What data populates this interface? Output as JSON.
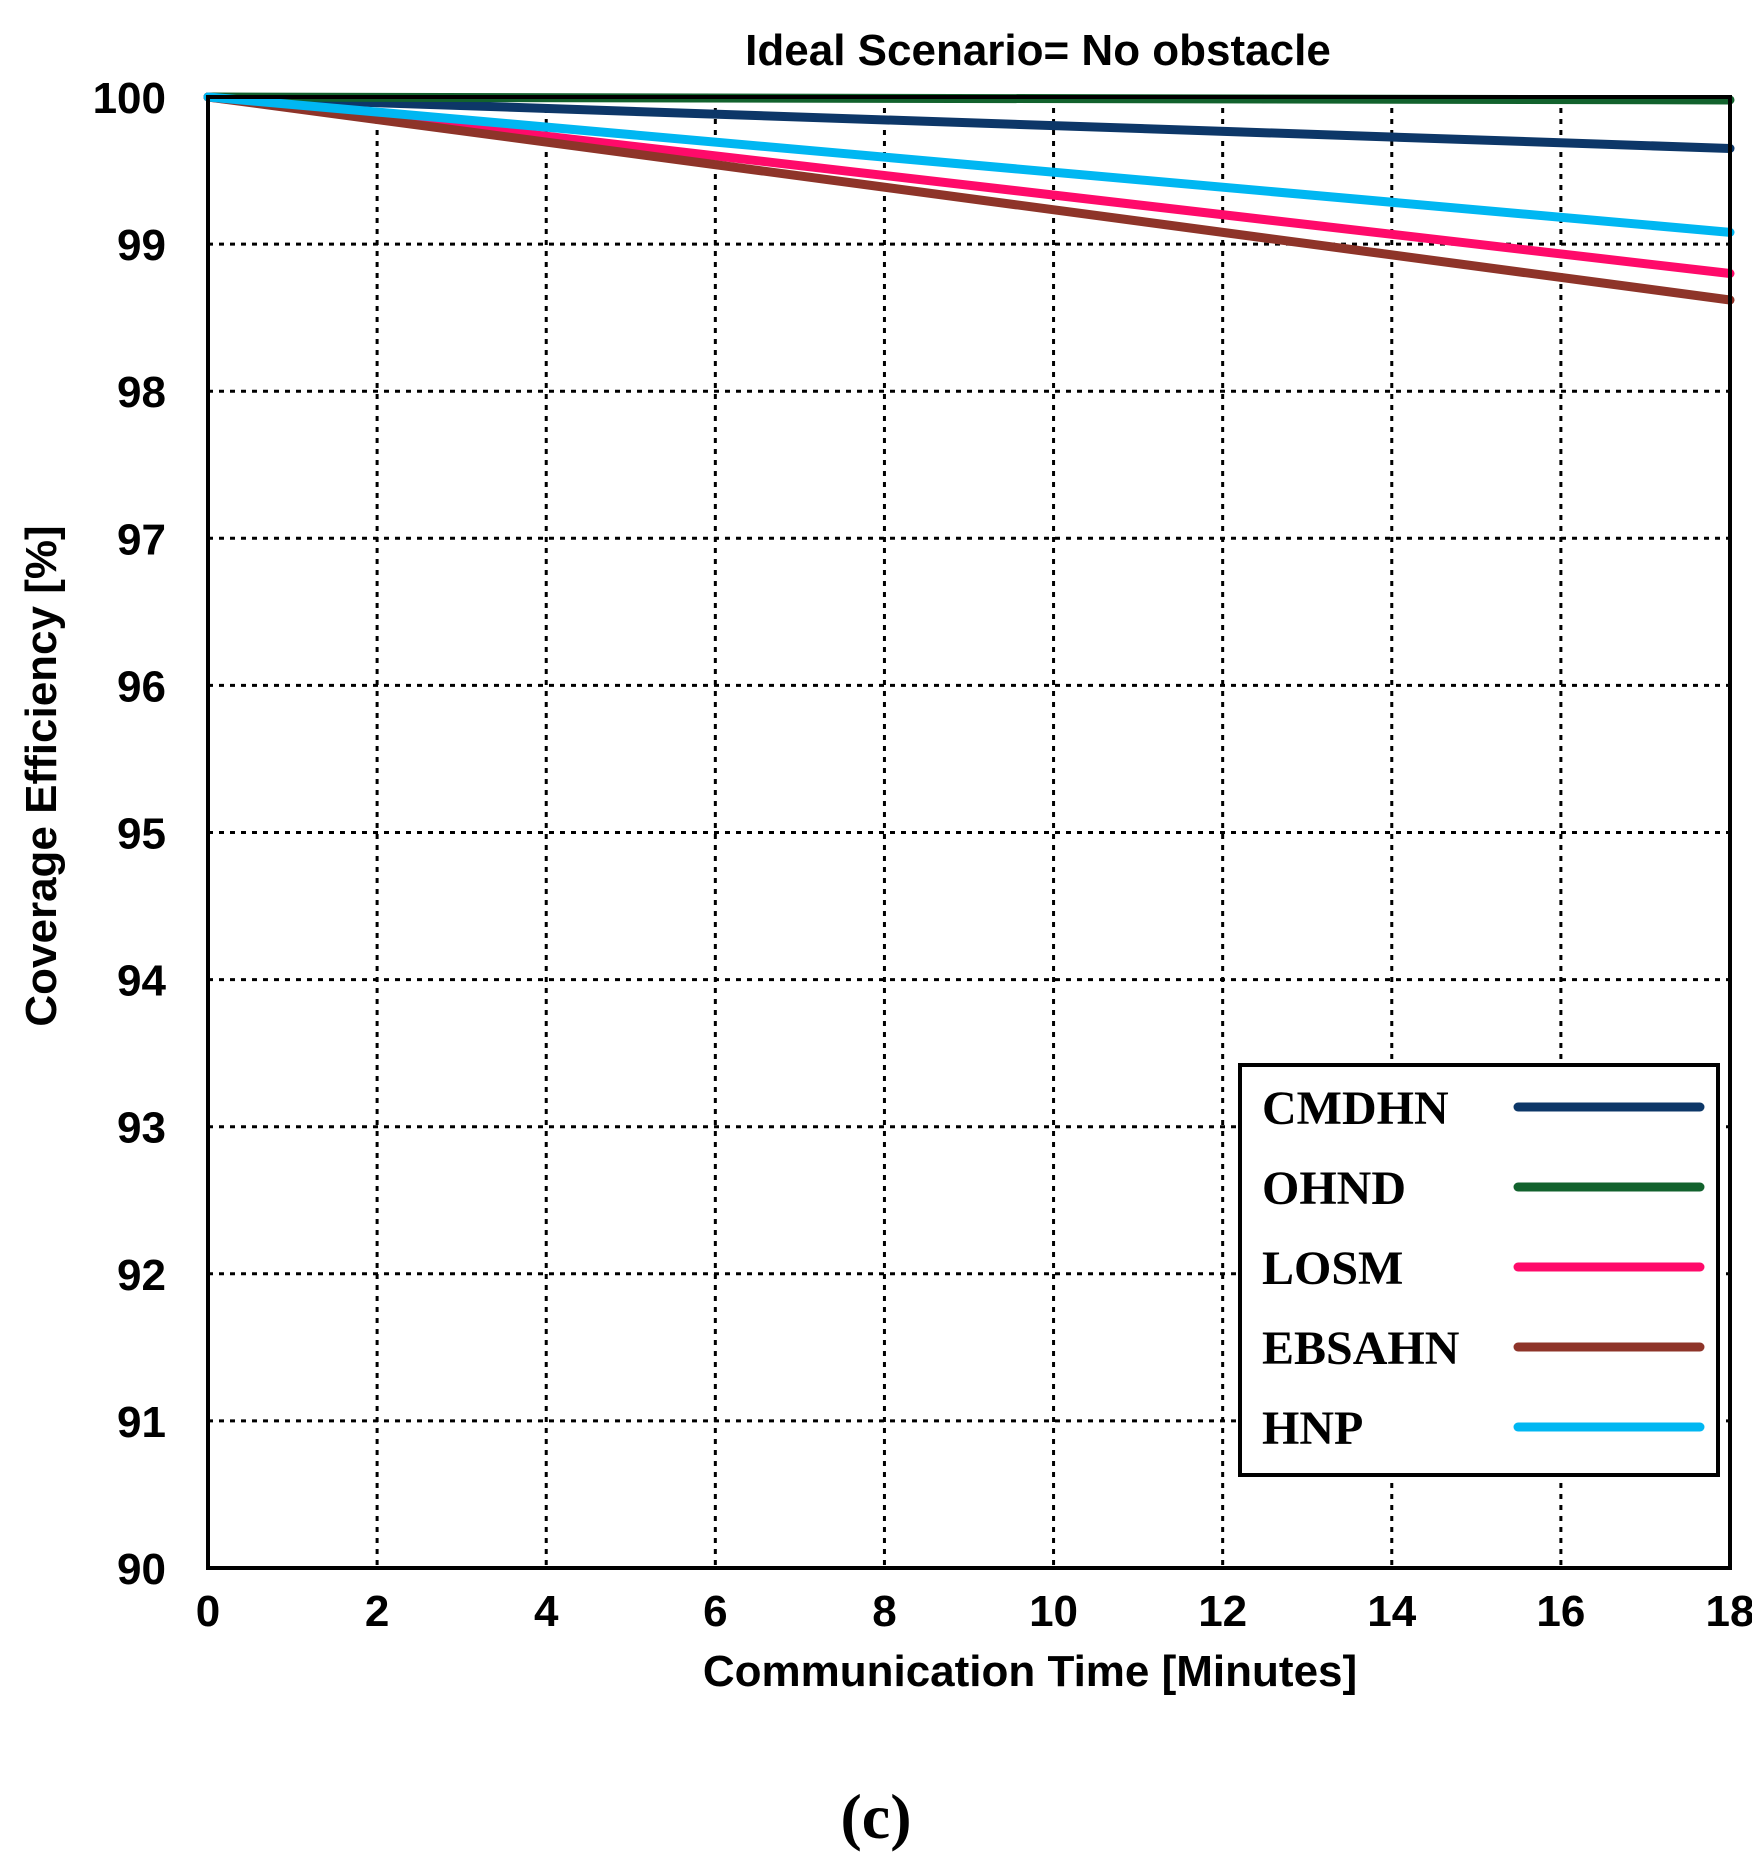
{
  "chart_data": {
    "type": "line",
    "title": "Ideal Scenario= No obstacle",
    "xlabel": "Communication Time [Minutes]",
    "ylabel": "Coverage Efficiency [%]",
    "xlim": [
      0,
      18
    ],
    "ylim": [
      90,
      100
    ],
    "xticks": [
      0,
      2,
      4,
      6,
      8,
      10,
      12,
      14,
      16,
      18
    ],
    "yticks": [
      90,
      91,
      92,
      93,
      94,
      95,
      96,
      97,
      98,
      99,
      100
    ],
    "grid": true,
    "grid_style": "dotted",
    "legend_position": "bottom-right",
    "x": [
      0,
      18
    ],
    "series": [
      {
        "name": "CMDHN",
        "color": "#0d3768",
        "values": [
          100,
          99.65
        ]
      },
      {
        "name": "OHND",
        "color": "#12622d",
        "values": [
          100,
          99.98
        ]
      },
      {
        "name": "LOSM",
        "color": "#ff0a6a",
        "values": [
          100,
          98.8
        ]
      },
      {
        "name": "EBSAHN",
        "color": "#8e3429",
        "values": [
          100,
          98.62
        ]
      },
      {
        "name": "HNP",
        "color": "#00b7f2",
        "values": [
          100,
          99.08
        ]
      }
    ],
    "caption": "(c)"
  }
}
